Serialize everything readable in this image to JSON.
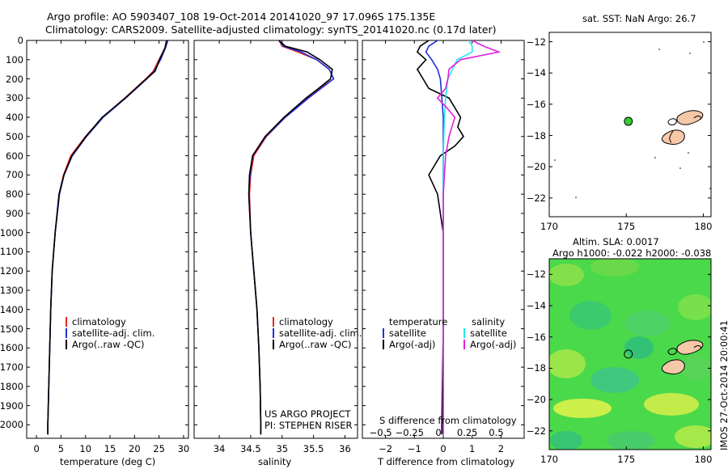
{
  "header": {
    "title_line1": "Argo profile: AO 5903407_108 19-Oct-2014 20141020_97 17.096S 175.135E",
    "title_line2": "Climatology: CARS2009. Satellite-adjusted climatology: synTS_20141020.nc (0.17d later)"
  },
  "colors": {
    "climatology": "#e8231f",
    "satellite": "#1f2fe0",
    "argo": "#000000",
    "sat_salinity": "#20e8f0",
    "argo_salinity": "#e020e0",
    "land": "#f5c8a8",
    "sst_marker": "#33cc33"
  },
  "chart_data": [
    {
      "type": "line",
      "xlabel": "temperature (deg C)",
      "xlim": [
        -2,
        31
      ],
      "xticks": [
        0,
        5,
        10,
        15,
        20,
        25,
        30
      ],
      "ylim": [
        2070,
        0
      ],
      "yticks": [
        0,
        100,
        200,
        300,
        400,
        500,
        600,
        700,
        800,
        900,
        1000,
        1100,
        1200,
        1300,
        1400,
        1500,
        1600,
        1700,
        1800,
        1900,
        2000
      ],
      "legend": [
        "climatology",
        "satellite-adj. clim.",
        "Argo(..raw -QC)"
      ],
      "series": [
        {
          "name": "climatology",
          "color": "#e8231f",
          "depth": [
            0,
            40,
            100,
            160,
            200,
            300,
            400,
            500,
            600,
            700,
            800,
            1000,
            1200,
            1400,
            1600,
            1800,
            2000,
            2050
          ],
          "values": [
            26.5,
            26.2,
            25.0,
            23.8,
            22.3,
            18.0,
            13.5,
            10.0,
            7.0,
            5.5,
            4.6,
            3.8,
            3.2,
            2.9,
            2.7,
            2.5,
            2.3,
            2.3
          ]
        },
        {
          "name": "satellite-adj. clim.",
          "color": "#1f2fe0",
          "depth": [
            0,
            40,
            100,
            160,
            200,
            300,
            400,
            500,
            600,
            700,
            800,
            1000,
            1200,
            1400,
            1600,
            1800,
            2000,
            2050
          ],
          "values": [
            26.8,
            26.3,
            25.3,
            24.0,
            22.5,
            18.2,
            13.6,
            10.2,
            7.3,
            5.6,
            4.7,
            3.8,
            3.2,
            2.9,
            2.7,
            2.5,
            2.3,
            2.3
          ]
        },
        {
          "name": "Argo(..raw -QC)",
          "color": "#000000",
          "depth": [
            0,
            40,
            100,
            160,
            200,
            300,
            400,
            500,
            600,
            700,
            800,
            1000,
            1200,
            1400,
            1600,
            1800,
            2000,
            2050
          ],
          "values": [
            26.6,
            26.2,
            25.1,
            24.2,
            22.4,
            18.1,
            13.4,
            10.1,
            7.2,
            5.6,
            4.6,
            3.8,
            3.2,
            2.9,
            2.7,
            2.5,
            2.3,
            2.3
          ]
        }
      ]
    },
    {
      "type": "line",
      "xlabel": "salinity",
      "xlim": [
        33.6,
        36.2
      ],
      "xticks": [
        34,
        34.5,
        35,
        35.5,
        36
      ],
      "ylim": [
        2070,
        0
      ],
      "legend": [
        "climatology",
        "satellite-adj. clim.",
        "Argo(..raw -QC)"
      ],
      "annotation": [
        "US ARGO PROJECT",
        "PI: STEPHEN RISER"
      ],
      "series": [
        {
          "name": "climatology",
          "color": "#e8231f",
          "depth": [
            0,
            30,
            60,
            100,
            150,
            200,
            250,
            300,
            400,
            500,
            600,
            700,
            800,
            1000,
            1200,
            1400,
            1600,
            1800,
            2000,
            2050
          ],
          "values": [
            34.95,
            35.0,
            35.25,
            35.55,
            35.75,
            35.82,
            35.6,
            35.4,
            35.05,
            34.75,
            34.55,
            34.5,
            34.48,
            34.5,
            34.55,
            34.6,
            34.63,
            34.65,
            34.66,
            34.66
          ]
        },
        {
          "name": "satellite-adj. clim.",
          "color": "#1f2fe0",
          "depth": [
            0,
            30,
            60,
            100,
            150,
            200,
            250,
            300,
            400,
            500,
            600,
            700,
            800,
            1000,
            1200,
            1400,
            1600,
            1800,
            2000,
            2050
          ],
          "values": [
            34.95,
            35.02,
            35.3,
            35.55,
            35.75,
            35.82,
            35.62,
            35.42,
            35.05,
            34.74,
            34.53,
            34.49,
            34.47,
            34.5,
            34.55,
            34.6,
            34.63,
            34.65,
            34.66,
            34.66
          ]
        },
        {
          "name": "Argo(..raw -QC)",
          "color": "#000000",
          "depth": [
            0,
            30,
            60,
            100,
            150,
            200,
            250,
            300,
            400,
            500,
            600,
            700,
            800,
            1000,
            1200,
            1400,
            1600,
            1800,
            2000,
            2050
          ],
          "values": [
            34.95,
            35.05,
            35.4,
            35.6,
            35.8,
            35.77,
            35.58,
            35.38,
            35.03,
            34.73,
            34.53,
            34.48,
            34.47,
            34.5,
            34.55,
            34.6,
            34.63,
            34.65,
            34.66,
            34.66
          ]
        }
      ]
    },
    {
      "type": "line",
      "xlabel": "T difference from climatology",
      "xlabel_top": "S difference from climatology",
      "xlim": [
        -2.8,
        2.8
      ],
      "xticks": [
        -2,
        -1,
        0,
        1,
        2
      ],
      "xticks_top": [
        -0.5,
        -0.25,
        0,
        0.25,
        0.5
      ],
      "ylim": [
        2070,
        0
      ],
      "legend_left_title": "temperature",
      "legend_right_title": "salinity",
      "legend_left": [
        "satellite",
        "Argo(-adj)"
      ],
      "legend_right": [
        "satellite",
        "Argo(-adj)"
      ],
      "series": [
        {
          "name": "temperature satellite",
          "color": "#1f2fe0",
          "depth": [
            0,
            30,
            60,
            100,
            150,
            200,
            300,
            400,
            600,
            1000,
            2000,
            2050
          ],
          "values": [
            -0.2,
            -0.5,
            -0.6,
            -0.4,
            -0.2,
            -0.1,
            -0.05,
            0,
            0,
            0,
            0,
            0
          ]
        },
        {
          "name": "temperature Argo(-adj)",
          "color": "#000000",
          "depth": [
            0,
            30,
            60,
            100,
            150,
            200,
            250,
            300,
            350,
            400,
            450,
            500,
            550,
            600,
            700,
            800,
            900,
            1000,
            1500,
            2000,
            2050
          ],
          "values": [
            -0.5,
            -0.8,
            -0.9,
            -0.6,
            -0.9,
            -0.7,
            -0.5,
            0.2,
            0.4,
            0.6,
            0.5,
            0.7,
            0.4,
            -0.1,
            -0.5,
            -0.2,
            -0.1,
            0,
            0,
            -0.05,
            -0.05
          ]
        },
        {
          "name": "salinity satellite",
          "color": "#20e8f0",
          "depth": [
            0,
            30,
            60,
            100,
            150,
            200,
            300,
            400,
            600,
            1000,
            2000,
            2050
          ],
          "values": [
            0.22,
            0.25,
            0.25,
            0.12,
            0.08,
            0.04,
            0.02,
            0.01,
            0,
            0,
            0,
            0
          ]
        },
        {
          "name": "salinity Argo(-adj)",
          "color": "#e020e0",
          "depth": [
            0,
            30,
            60,
            100,
            150,
            200,
            250,
            300,
            350,
            400,
            500,
            600,
            700,
            800,
            1000,
            1200,
            1500,
            2000,
            2050
          ],
          "values": [
            0.25,
            0.35,
            0.48,
            0.15,
            0.05,
            0.04,
            0.02,
            -0.05,
            0.03,
            0.1,
            0.05,
            0.02,
            0.01,
            0,
            0,
            0,
            0,
            0,
            0
          ]
        }
      ]
    }
  ],
  "maps": {
    "sst": {
      "title": "sat. SST: NaN Argo: 26.7",
      "lon_ticks": [
        "170",
        "175",
        "180"
      ],
      "lat_ticks": [
        "-12",
        "-14",
        "-16",
        "-18",
        "-20",
        "-22"
      ],
      "marker": {
        "lon": 175.135,
        "lat": -17.096
      }
    },
    "sla": {
      "title1": "Altim. SLA: 0.0017",
      "title2": "Argo h1000: -0.022 h2000: -0.038",
      "lon_ticks": [
        "170",
        "175",
        "180"
      ],
      "lat_ticks": [
        "-12",
        "-14",
        "-16",
        "-18",
        "-20",
        "-22"
      ],
      "marker": {
        "lon": 175.135,
        "lat": -17.096
      }
    }
  },
  "footer": {
    "stamp": "IMOS 27-Oct-2014 20:00:41"
  }
}
